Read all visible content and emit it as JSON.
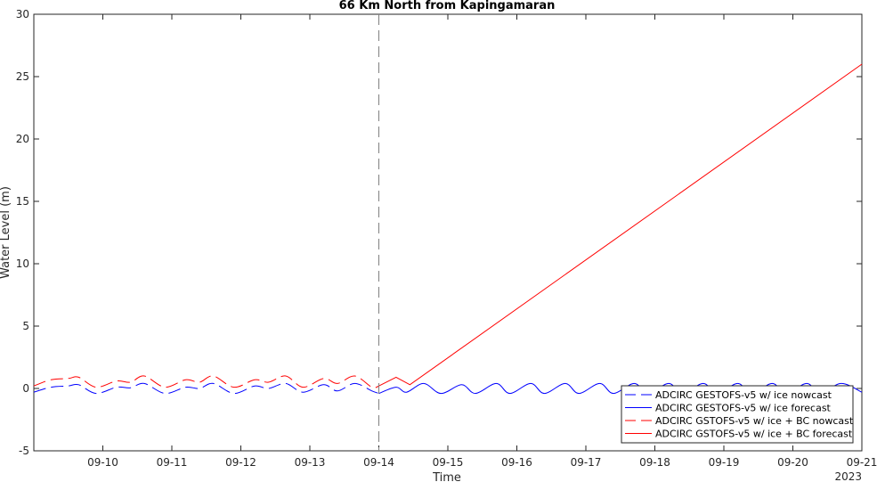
{
  "chart_data": {
    "type": "line",
    "title": "66 Km North from Kapingamaran",
    "xlabel": "Time",
    "ylabel": "Water Level (m)",
    "x_unit": "day of September 2023",
    "xlim": [
      9.0,
      21.0
    ],
    "ylim": [
      -5,
      30
    ],
    "xticks": [
      10,
      11,
      12,
      13,
      14,
      15,
      16,
      17,
      18,
      19,
      20,
      21
    ],
    "xtick_labels": [
      "09-10",
      "09-11",
      "09-12",
      "09-13",
      "09-14",
      "09-15",
      "09-16",
      "09-17",
      "09-18",
      "09-19",
      "09-20",
      "09-21"
    ],
    "yticks": [
      -5,
      0,
      5,
      10,
      15,
      20,
      25,
      30
    ],
    "ytick_labels": [
      "-5",
      "0",
      "5",
      "10",
      "15",
      "20",
      "25",
      "30"
    ],
    "year_label": "2023",
    "vertical_marker_x": 14.0,
    "grid": false,
    "legend_position": "bottom-right",
    "series": [
      {
        "name": "ADCIRC GESTOFS-v5 w/ ice nowcast",
        "color": "#0000ff",
        "style": "dashed",
        "x": [
          9.0,
          9.25,
          9.5,
          9.65,
          9.9,
          10.2,
          10.4,
          10.6,
          10.9,
          11.2,
          11.4,
          11.6,
          11.9,
          12.2,
          12.4,
          12.65,
          12.9,
          13.2,
          13.4,
          13.65,
          13.9,
          14.0
        ],
        "y": [
          -0.3,
          0.1,
          0.2,
          0.3,
          -0.4,
          0.1,
          0.05,
          0.4,
          -0.4,
          0.1,
          0.0,
          0.4,
          -0.4,
          0.2,
          0.0,
          0.4,
          -0.3,
          0.3,
          -0.2,
          0.4,
          -0.2,
          -0.4
        ]
      },
      {
        "name": "ADCIRC GESTOFS-v5 w/ ice forecast",
        "color": "#0000ff",
        "style": "solid",
        "x": [
          14.0,
          14.25,
          14.4,
          14.65,
          14.9,
          15.2,
          15.4,
          15.7,
          15.9,
          16.2,
          16.4,
          16.7,
          16.9,
          17.2,
          17.4,
          17.7,
          17.9,
          18.2,
          18.4,
          18.7,
          18.9,
          19.2,
          19.4,
          19.7,
          19.9,
          20.2,
          20.4,
          20.7,
          21.0
        ],
        "y": [
          -0.4,
          0.1,
          -0.3,
          0.4,
          -0.4,
          0.3,
          -0.4,
          0.4,
          -0.4,
          0.4,
          -0.4,
          0.4,
          -0.4,
          0.4,
          -0.4,
          0.4,
          -0.4,
          0.4,
          -0.4,
          0.4,
          -0.4,
          0.4,
          -0.4,
          0.4,
          -0.4,
          0.4,
          -0.4,
          0.4,
          -0.3
        ]
      },
      {
        "name": "ADCIRC GSTOFS-v5 w/ ice + BC nowcast",
        "color": "#ff0000",
        "style": "dashed",
        "x": [
          9.0,
          9.25,
          9.5,
          9.65,
          9.9,
          10.2,
          10.4,
          10.6,
          10.9,
          11.2,
          11.4,
          11.6,
          11.9,
          12.2,
          12.4,
          12.65,
          12.9,
          13.2,
          13.4,
          13.65,
          13.9,
          14.0
        ],
        "y": [
          0.2,
          0.7,
          0.8,
          0.9,
          0.1,
          0.6,
          0.5,
          1.0,
          0.1,
          0.7,
          0.5,
          1.0,
          0.1,
          0.7,
          0.5,
          1.0,
          0.1,
          0.8,
          0.4,
          1.0,
          0.1,
          0.2
        ]
      },
      {
        "name": "ADCIRC GSTOFS-v5 w/ ice + BC forecast",
        "color": "#ff0000",
        "style": "solid",
        "x": [
          14.0,
          14.25,
          14.45,
          21.0
        ],
        "y": [
          0.2,
          0.9,
          0.3,
          26.0
        ]
      }
    ]
  }
}
